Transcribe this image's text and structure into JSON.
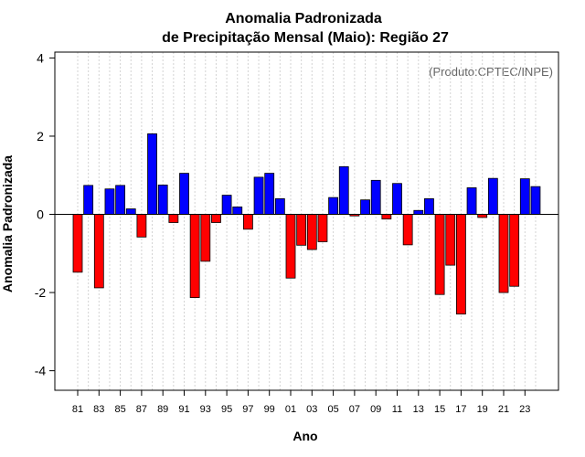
{
  "chart_data": {
    "type": "bar",
    "title": "Anomalia Padronizada",
    "subtitle": "de Precipitação Mensal (Maio): Região 27",
    "xlabel": "Ano",
    "ylabel": "Anomalia Padronizada",
    "annotation": "(Produto:CPTEC/INPE)",
    "ylim": [
      -4.5,
      4.15
    ],
    "yticks": [
      -4,
      -2,
      0,
      2,
      4
    ],
    "xtick_labels": [
      "81",
      "83",
      "85",
      "87",
      "89",
      "91",
      "93",
      "95",
      "97",
      "99",
      "01",
      "03",
      "05",
      "07",
      "09",
      "11",
      "13",
      "15",
      "17",
      "19",
      "21",
      "23"
    ],
    "categories": [
      "1981",
      "1982",
      "1983",
      "1984",
      "1985",
      "1986",
      "1987",
      "1988",
      "1989",
      "1990",
      "1991",
      "1992",
      "1993",
      "1994",
      "1995",
      "1996",
      "1997",
      "1998",
      "1999",
      "2000",
      "2001",
      "2002",
      "2003",
      "2004",
      "2005",
      "2006",
      "2007",
      "2008",
      "2009",
      "2010",
      "2011",
      "2012",
      "2013",
      "2014",
      "2015",
      "2016",
      "2017",
      "2018",
      "2019",
      "2020",
      "2021",
      "2022",
      "2023",
      "2024"
    ],
    "values": [
      -1.48,
      0.74,
      -1.88,
      0.65,
      0.74,
      0.14,
      -0.58,
      2.06,
      0.75,
      -0.21,
      1.05,
      -2.13,
      -1.2,
      -0.21,
      0.49,
      0.19,
      -0.38,
      0.95,
      1.05,
      0.4,
      -1.63,
      -0.79,
      -0.9,
      -0.7,
      0.43,
      1.22,
      -0.04,
      0.37,
      0.87,
      -0.12,
      0.79,
      -0.78,
      0.1,
      0.4,
      -2.05,
      -1.3,
      -2.55,
      0.68,
      -0.08,
      0.92,
      -2.0,
      -1.84,
      0.91,
      0.71
    ],
    "colors": {
      "positive": "#0000ff",
      "negative": "#ff0000",
      "grid": "#d3d3d3",
      "annotation": "#666666"
    }
  }
}
